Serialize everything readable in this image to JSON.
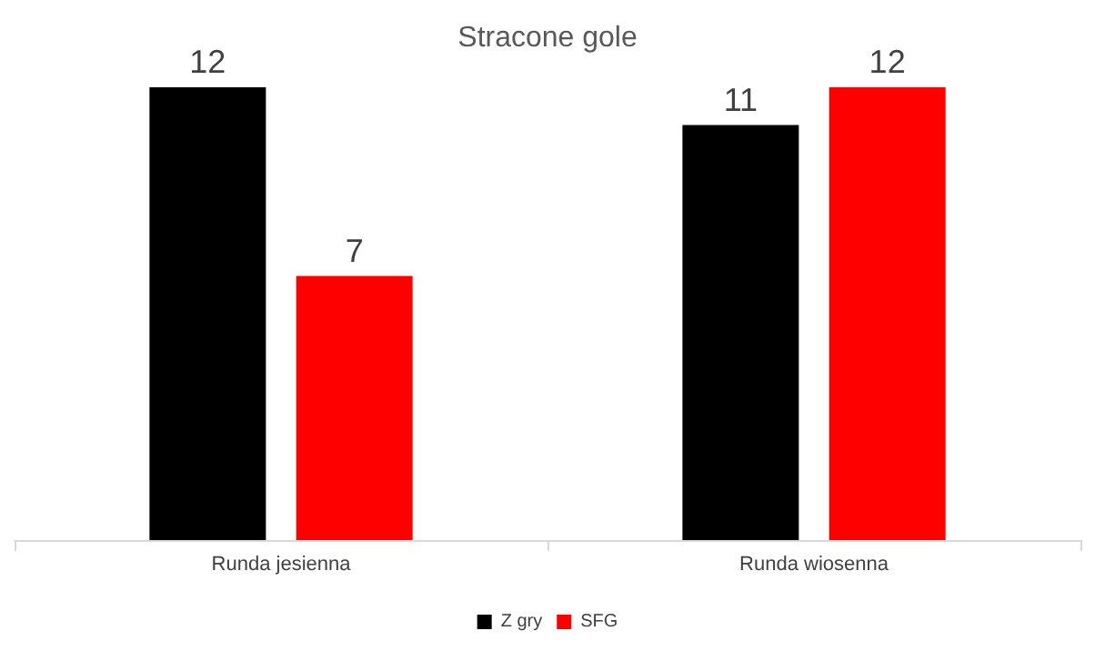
{
  "chart_data": {
    "type": "bar",
    "title": "Stracone gole",
    "categories": [
      "Runda jesienna",
      "Runda wiosenna"
    ],
    "series": [
      {
        "name": "Z gry",
        "color": "#000000",
        "values": [
          12,
          11
        ]
      },
      {
        "name": "SFG",
        "color": "#ff0000",
        "values": [
          7,
          12
        ]
      }
    ],
    "data_labels": true,
    "legend": "bottom"
  }
}
